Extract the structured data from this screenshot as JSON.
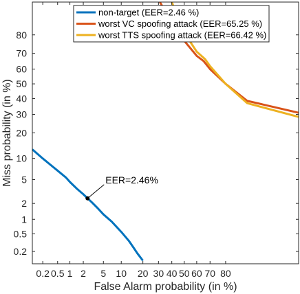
{
  "chart_data": {
    "type": "line",
    "title": "",
    "xlabel": "False Alarm probability (in %)",
    "ylabel": "Miss probability (in %)",
    "scale": "normal-deviate (DET)",
    "xlim": [
      0.1,
      99
    ],
    "ylim": [
      0.1,
      92
    ],
    "xticks": [
      0.2,
      0.5,
      1,
      2,
      5,
      10,
      20,
      30,
      40,
      50,
      60,
      70,
      80
    ],
    "xtick_labels": [
      "0.2",
      "0.5",
      "1",
      "2",
      "5",
      "10",
      "20",
      "30",
      "40",
      "50",
      "60",
      "70",
      "80"
    ],
    "yticks": [
      0.2,
      0.5,
      1,
      2,
      5,
      10,
      20,
      30,
      40,
      50,
      60,
      70,
      80
    ],
    "ytick_labels": [
      "0.2",
      "0.5",
      "1",
      "2",
      "5",
      "10",
      "20",
      "30",
      "40",
      "50",
      "60",
      "70",
      "80"
    ],
    "grid": false,
    "legend_position": "top-right",
    "series": [
      {
        "name": "non-target (EER=2.46 %)",
        "color": "#0072BD",
        "x": [
          0.1,
          0.2,
          0.3,
          0.5,
          0.8,
          1.0,
          1.5,
          2.0,
          2.46,
          3.0,
          4.0,
          5.0,
          7.0,
          10.0,
          13.0,
          15.0,
          17.0,
          20.0
        ],
        "y": [
          13.0,
          10.0,
          8.5,
          6.8,
          5.4,
          4.6,
          3.5,
          2.9,
          2.46,
          2.1,
          1.6,
          1.25,
          0.9,
          0.55,
          0.35,
          0.25,
          0.18,
          0.12
        ]
      },
      {
        "name": "worst VC spoofing attack (EER=65.25 %)",
        "color": "#D95319",
        "x": [
          31,
          40,
          50,
          60,
          65.25,
          70,
          80,
          90,
          99
        ],
        "y": [
          92,
          85.5,
          77,
          68.5,
          65.25,
          60,
          50,
          38.5,
          31
        ]
      },
      {
        "name": "worst TTS spoofing attack (EER=66.42 %)",
        "color": "#EDB120",
        "x": [
          40,
          50,
          60,
          66.42,
          70,
          80,
          90,
          99
        ],
        "y": [
          92,
          81,
          71,
          66.42,
          62,
          50,
          37,
          28.5
        ]
      }
    ],
    "annotations": [
      {
        "text": "EER=2.46%",
        "x": 2.46,
        "y": 2.46
      }
    ]
  }
}
